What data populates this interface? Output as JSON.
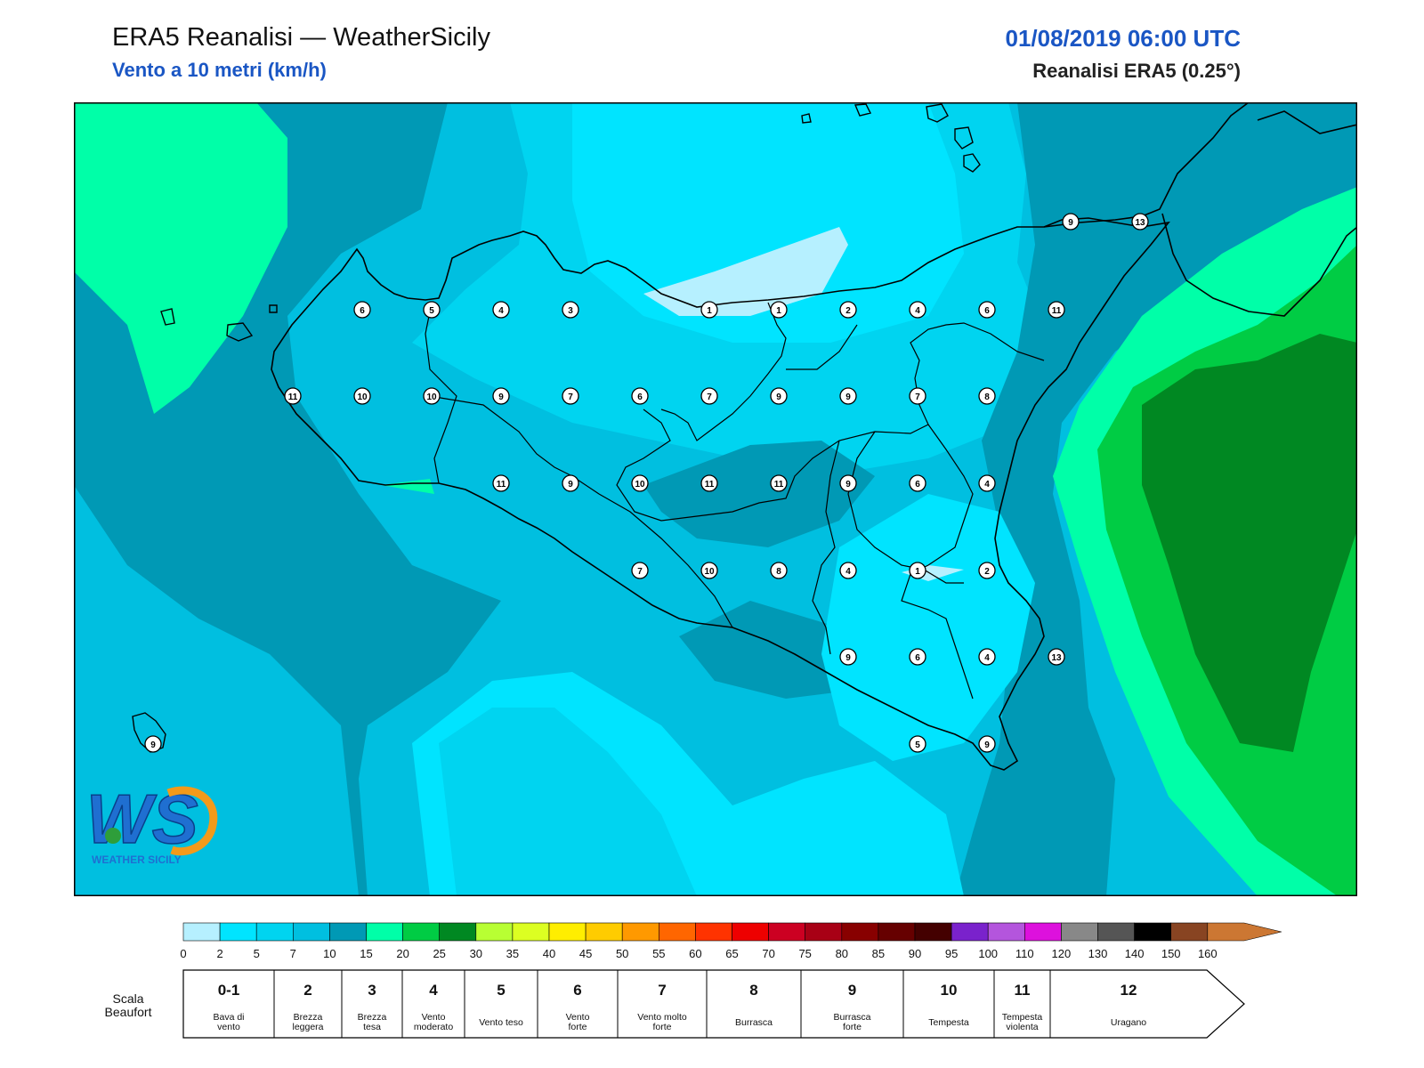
{
  "header": {
    "title": "ERA5 Reanalisi — WeatherSicily",
    "subtitle": "Vento a 10 metri (km/h)",
    "datetime": "01/08/2019 06:00 UTC",
    "source": "Reanalisi ERA5 (0.25°)"
  },
  "logo": {
    "text": "WEATHER SICILY",
    "letters": "WS"
  },
  "colorbar": {
    "ticks": [
      "0",
      "2",
      "5",
      "7",
      "10",
      "15",
      "20",
      "25",
      "30",
      "35",
      "40",
      "45",
      "50",
      "55",
      "60",
      "65",
      "70",
      "75",
      "80",
      "85",
      "90",
      "95",
      "100",
      "110",
      "120",
      "130",
      "140",
      "150",
      "160"
    ],
    "colors": [
      "#b6f0ff",
      "#00e4ff",
      "#00d4f0",
      "#00bfe0",
      "#0099b5",
      "#00ffa8",
      "#00cc44",
      "#008822",
      "#b8ff33",
      "#dcff22",
      "#ffee00",
      "#ffcc00",
      "#ff9900",
      "#ff6600",
      "#ff3300",
      "#ee0000",
      "#cc0022",
      "#a80015",
      "#880000",
      "#660000",
      "#440000",
      "#7a22cc",
      "#b455dd",
      "#dd11dd",
      "#888888",
      "#555555",
      "#000000",
      "#884422",
      "#cc7733"
    ]
  },
  "beaufort": {
    "label_line1": "Scala",
    "label_line2": "Beaufort",
    "classes": [
      {
        "num": "0-1",
        "line1": "Bava di",
        "line2": "vento"
      },
      {
        "num": "2",
        "line1": "Brezza",
        "line2": "leggera"
      },
      {
        "num": "3",
        "line1": "Brezza",
        "line2": "tesa"
      },
      {
        "num": "4",
        "line1": "Vento",
        "line2": "moderato"
      },
      {
        "num": "5",
        "line1": "Vento teso",
        "line2": ""
      },
      {
        "num": "6",
        "line1": "Vento",
        "line2": "forte"
      },
      {
        "num": "7",
        "line1": "Vento molto",
        "line2": "forte"
      },
      {
        "num": "8",
        "line1": "Burrasca",
        "line2": ""
      },
      {
        "num": "9",
        "line1": "Burrasca",
        "line2": "forte"
      },
      {
        "num": "10",
        "line1": "Tempesta",
        "line2": ""
      },
      {
        "num": "11",
        "line1": "Tempesta",
        "line2": "violenta"
      },
      {
        "num": "12",
        "line1": "Uragano",
        "line2": ""
      }
    ]
  },
  "stations": [
    {
      "v": "9"
    },
    {
      "v": "13"
    },
    {
      "v": "6"
    },
    {
      "v": "5"
    },
    {
      "v": "4"
    },
    {
      "v": "3"
    },
    {
      "v": "1"
    },
    {
      "v": "1"
    },
    {
      "v": "2"
    },
    {
      "v": "4"
    },
    {
      "v": "6"
    },
    {
      "v": "11"
    },
    {
      "v": "11"
    },
    {
      "v": "10"
    },
    {
      "v": "10"
    },
    {
      "v": "9"
    },
    {
      "v": "7"
    },
    {
      "v": "6"
    },
    {
      "v": "7"
    },
    {
      "v": "9"
    },
    {
      "v": "9"
    },
    {
      "v": "7"
    },
    {
      "v": "8"
    },
    {
      "v": "11"
    },
    {
      "v": "9"
    },
    {
      "v": "10"
    },
    {
      "v": "11"
    },
    {
      "v": "11"
    },
    {
      "v": "9"
    },
    {
      "v": "6"
    },
    {
      "v": "4"
    },
    {
      "v": "7"
    },
    {
      "v": "10"
    },
    {
      "v": "8"
    },
    {
      "v": "4"
    },
    {
      "v": "1"
    },
    {
      "v": "2"
    },
    {
      "v": "9"
    },
    {
      "v": "6"
    },
    {
      "v": "4"
    },
    {
      "v": "13"
    },
    {
      "v": "5"
    },
    {
      "v": "9"
    },
    {
      "v": "9"
    }
  ]
}
